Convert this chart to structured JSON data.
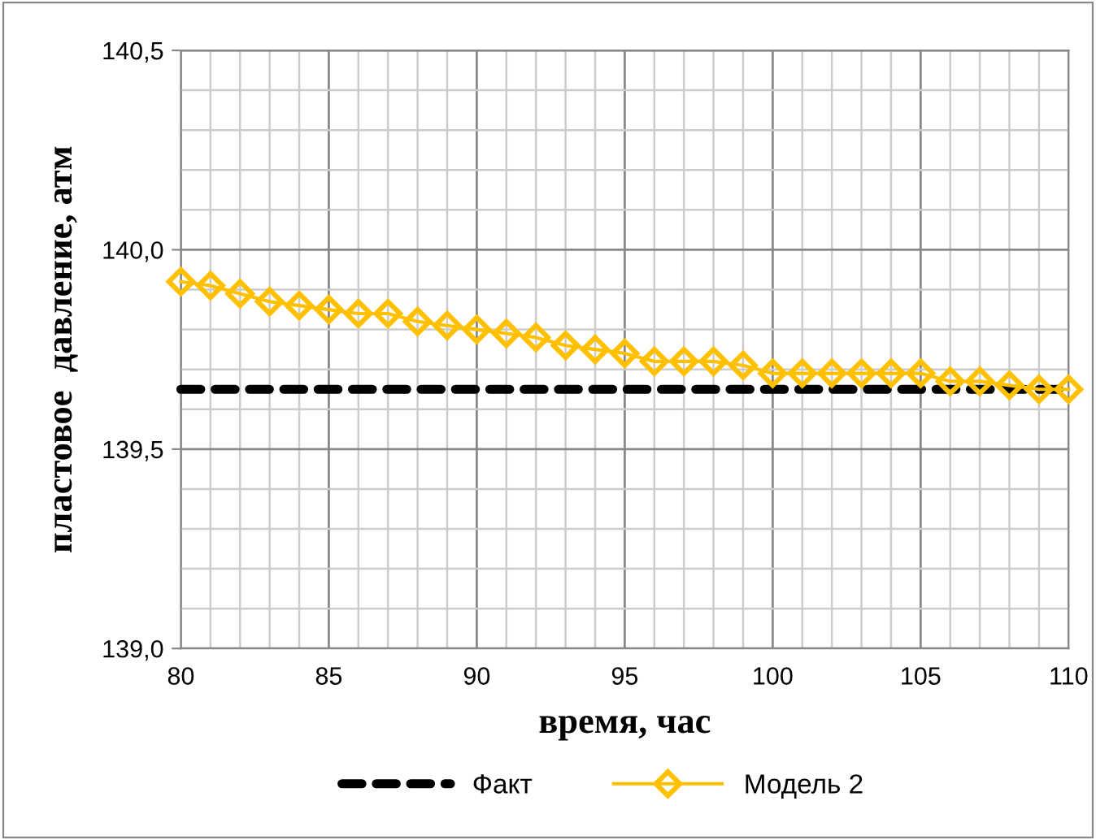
{
  "chart_data": {
    "type": "line",
    "xlabel": "время, час",
    "ylabel": "пластовое  давление, атм",
    "xlim": [
      80,
      110
    ],
    "xticks": [
      80,
      85,
      90,
      95,
      100,
      105,
      110
    ],
    "ylim": [
      139.0,
      140.5
    ],
    "yticks": [
      {
        "value": 139.0,
        "label": "139,0"
      },
      {
        "value": 139.5,
        "label": "139,5"
      },
      {
        "value": 140.0,
        "label": "140,0"
      },
      {
        "value": 140.5,
        "label": "140,5"
      }
    ],
    "grid": true,
    "legend": "bottom",
    "series": [
      {
        "name": "Факт",
        "color": "#000000",
        "line_style": "dashed",
        "marker": "none",
        "x": [
          80,
          110
        ],
        "values": [
          139.65,
          139.65
        ]
      },
      {
        "name": "Модель 2",
        "color": "#ffc000",
        "line_style": "solid",
        "marker": "diamond",
        "x": [
          80,
          81,
          82,
          83,
          84,
          85,
          86,
          87,
          88,
          89,
          90,
          91,
          92,
          93,
          94,
          95,
          96,
          97,
          98,
          99,
          100,
          101,
          102,
          103,
          104,
          105,
          106,
          107,
          108,
          109,
          110
        ],
        "values": [
          139.92,
          139.91,
          139.89,
          139.87,
          139.86,
          139.85,
          139.84,
          139.84,
          139.82,
          139.81,
          139.8,
          139.79,
          139.78,
          139.76,
          139.75,
          139.74,
          139.72,
          139.72,
          139.72,
          139.71,
          139.69,
          139.69,
          139.69,
          139.69,
          139.69,
          139.69,
          139.67,
          139.67,
          139.66,
          139.65,
          139.65
        ]
      }
    ]
  }
}
